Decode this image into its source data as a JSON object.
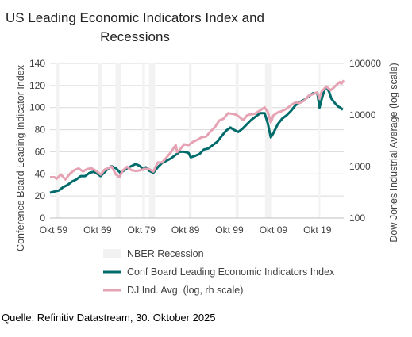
{
  "chart_data": {
    "type": "line",
    "title": "US Leading Economic Indicators Index and Recessions",
    "title_lines": [
      "US Leading Economic Indicators Index and",
      "Recessions"
    ],
    "ylabel": "Conference Board Leading Indicator Index",
    "y2label": "Dow Jones Industrial Average (log scale)",
    "ylim": [
      0,
      140
    ],
    "yticks": [
      0,
      20,
      40,
      60,
      80,
      100,
      120,
      140
    ],
    "y2lim": [
      100,
      100000
    ],
    "y2scale": "log",
    "y2ticks": [
      100,
      1000,
      10000,
      100000
    ],
    "xlim": [
      1959.0,
      2025.8
    ],
    "xticks": [
      {
        "x": 1959.8,
        "label": "Okt 59"
      },
      {
        "x": 1969.8,
        "label": "Okt 69"
      },
      {
        "x": 1979.8,
        "label": "Okt 79"
      },
      {
        "x": 1989.8,
        "label": "Okt 89"
      },
      {
        "x": 1999.8,
        "label": "Okt 99"
      },
      {
        "x": 2009.8,
        "label": "Okt 09"
      },
      {
        "x": 2019.8,
        "label": "Okt 19"
      }
    ],
    "grid": "horizontal",
    "legend_placement": "bottom",
    "recessions": [
      [
        1960.3,
        1961.1
      ],
      [
        1969.9,
        1970.9
      ],
      [
        1973.9,
        1975.2
      ],
      [
        1980.0,
        1980.6
      ],
      [
        1981.5,
        1982.9
      ],
      [
        1990.6,
        1991.2
      ],
      [
        2001.2,
        2001.9
      ],
      [
        2007.9,
        2009.5
      ],
      [
        2020.1,
        2020.4
      ]
    ],
    "series": [
      {
        "name": "NBER Recession",
        "kind": "band",
        "color": "#f2f2f2"
      },
      {
        "name": "Conf Board Leading Economic Indicators Index",
        "axis": "left",
        "color": "#006b6b",
        "points": [
          [
            1959.0,
            23
          ],
          [
            1960.0,
            24
          ],
          [
            1961.0,
            25
          ],
          [
            1962.0,
            28
          ],
          [
            1963.0,
            30
          ],
          [
            1964.0,
            33
          ],
          [
            1965.0,
            35
          ],
          [
            1966.0,
            38
          ],
          [
            1967.0,
            38
          ],
          [
            1968.0,
            41
          ],
          [
            1969.0,
            42
          ],
          [
            1969.8,
            40
          ],
          [
            1970.5,
            38
          ],
          [
            1971.0,
            40
          ],
          [
            1972.0,
            44
          ],
          [
            1973.0,
            47
          ],
          [
            1974.0,
            45
          ],
          [
            1975.0,
            41
          ],
          [
            1975.8,
            43
          ],
          [
            1976.5,
            45
          ],
          [
            1977.5,
            47
          ],
          [
            1978.5,
            49
          ],
          [
            1979.5,
            47
          ],
          [
            1980.2,
            44
          ],
          [
            1980.8,
            46
          ],
          [
            1981.5,
            43
          ],
          [
            1982.5,
            41
          ],
          [
            1983.5,
            46
          ],
          [
            1984.5,
            50
          ],
          [
            1985.5,
            52
          ],
          [
            1986.5,
            54
          ],
          [
            1987.5,
            57
          ],
          [
            1988.5,
            60
          ],
          [
            1989.5,
            60
          ],
          [
            1990.5,
            59
          ],
          [
            1991.0,
            55
          ],
          [
            1991.8,
            56
          ],
          [
            1993.0,
            58
          ],
          [
            1994.0,
            62
          ],
          [
            1995.0,
            63
          ],
          [
            1996.0,
            66
          ],
          [
            1997.0,
            69
          ],
          [
            1998.0,
            74
          ],
          [
            1999.0,
            79
          ],
          [
            2000.0,
            82
          ],
          [
            2000.8,
            80
          ],
          [
            2001.8,
            78
          ],
          [
            2002.8,
            81
          ],
          [
            2003.8,
            85
          ],
          [
            2004.8,
            89
          ],
          [
            2005.8,
            92
          ],
          [
            2006.8,
            95
          ],
          [
            2007.8,
            95
          ],
          [
            2008.5,
            86
          ],
          [
            2009.2,
            73
          ],
          [
            2009.8,
            77
          ],
          [
            2010.8,
            85
          ],
          [
            2011.8,
            90
          ],
          [
            2012.8,
            93
          ],
          [
            2013.8,
            97
          ],
          [
            2014.8,
            102
          ],
          [
            2015.8,
            105
          ],
          [
            2016.8,
            107
          ],
          [
            2017.8,
            110
          ],
          [
            2018.8,
            113
          ],
          [
            2019.8,
            113
          ],
          [
            2020.3,
            100
          ],
          [
            2020.8,
            108
          ],
          [
            2021.5,
            117
          ],
          [
            2021.9,
            119
          ],
          [
            2022.5,
            114
          ],
          [
            2023.0,
            108
          ],
          [
            2023.8,
            104
          ],
          [
            2024.5,
            101
          ],
          [
            2025.0,
            100
          ],
          [
            2025.6,
            98
          ]
        ]
      },
      {
        "name": "DJ Ind. Avg. (log, rh scale)",
        "axis": "right",
        "color": "#e6a3b4",
        "points": [
          [
            1959.0,
            620
          ],
          [
            1960.0,
            620
          ],
          [
            1960.5,
            580
          ],
          [
            1961.5,
            700
          ],
          [
            1962.5,
            560
          ],
          [
            1963.5,
            720
          ],
          [
            1964.5,
            850
          ],
          [
            1965.5,
            920
          ],
          [
            1966.5,
            800
          ],
          [
            1967.5,
            900
          ],
          [
            1968.5,
            920
          ],
          [
            1969.5,
            820
          ],
          [
            1970.5,
            700
          ],
          [
            1971.5,
            880
          ],
          [
            1972.5,
            950
          ],
          [
            1973.0,
            1000
          ],
          [
            1974.0,
            700
          ],
          [
            1974.8,
            620
          ],
          [
            1975.5,
            830
          ],
          [
            1976.5,
            990
          ],
          [
            1977.5,
            850
          ],
          [
            1978.5,
            820
          ],
          [
            1979.5,
            840
          ],
          [
            1980.5,
            900
          ],
          [
            1981.5,
            900
          ],
          [
            1982.5,
            800
          ],
          [
            1983.5,
            1200
          ],
          [
            1984.5,
            1200
          ],
          [
            1985.5,
            1500
          ],
          [
            1986.5,
            1900
          ],
          [
            1987.6,
            2600
          ],
          [
            1987.9,
            1900
          ],
          [
            1988.5,
            2100
          ],
          [
            1989.5,
            2700
          ],
          [
            1990.5,
            2600
          ],
          [
            1991.5,
            3000
          ],
          [
            1992.5,
            3300
          ],
          [
            1993.5,
            3700
          ],
          [
            1994.5,
            3800
          ],
          [
            1995.5,
            4800
          ],
          [
            1996.5,
            5800
          ],
          [
            1997.5,
            7800
          ],
          [
            1998.5,
            8500
          ],
          [
            1999.5,
            10800
          ],
          [
            2000.5,
            10500
          ],
          [
            2001.5,
            10000
          ],
          [
            2002.5,
            8500
          ],
          [
            2003.0,
            8000
          ],
          [
            2003.8,
            9800
          ],
          [
            2004.5,
            10300
          ],
          [
            2005.5,
            10500
          ],
          [
            2006.5,
            11800
          ],
          [
            2007.8,
            14000
          ],
          [
            2008.5,
            11500
          ],
          [
            2009.2,
            7200
          ],
          [
            2009.8,
            9800
          ],
          [
            2010.8,
            11200
          ],
          [
            2011.8,
            12000
          ],
          [
            2012.8,
            13200
          ],
          [
            2013.8,
            15500
          ],
          [
            2014.8,
            17500
          ],
          [
            2015.8,
            17000
          ],
          [
            2016.8,
            19000
          ],
          [
            2017.8,
            23500
          ],
          [
            2018.8,
            25500
          ],
          [
            2019.8,
            27500
          ],
          [
            2020.2,
            21000
          ],
          [
            2020.8,
            28500
          ],
          [
            2021.8,
            35500
          ],
          [
            2022.5,
            32000
          ],
          [
            2022.8,
            30000
          ],
          [
            2023.5,
            34000
          ],
          [
            2024.2,
            38500
          ],
          [
            2024.9,
            43500
          ],
          [
            2025.3,
            40500
          ],
          [
            2025.8,
            47000
          ]
        ]
      }
    ]
  },
  "footer": {
    "source": "Quelle: Refinitiv Datastream, 30. Oktober 2025"
  }
}
